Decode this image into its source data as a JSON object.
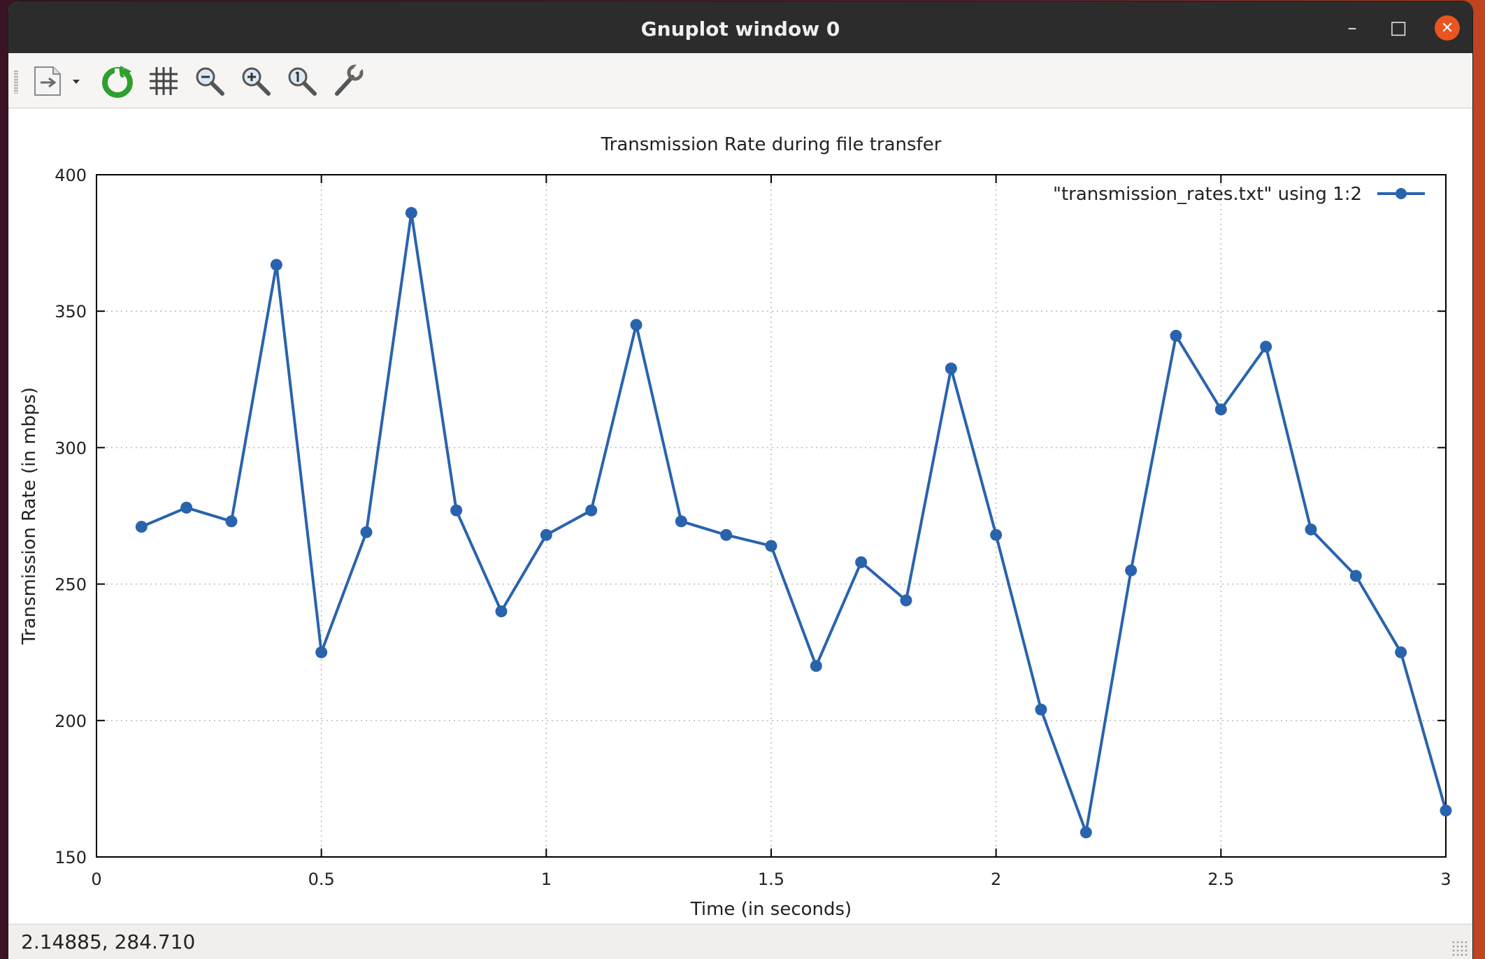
{
  "window": {
    "title": "Gnuplot window 0",
    "minimize_glyph": "–",
    "maximize_glyph": "□",
    "close_glyph": "✕"
  },
  "toolbar": {
    "items": [
      {
        "name": "export-icon",
        "label": "Export"
      },
      {
        "name": "replot-icon",
        "label": "Replot"
      },
      {
        "name": "grid-icon",
        "label": "Show grid"
      },
      {
        "name": "zoom-out-icon",
        "label": "Previous zoom"
      },
      {
        "name": "zoom-in-icon",
        "label": "Next zoom"
      },
      {
        "name": "zoom-reset-icon",
        "label": "Autoscale"
      },
      {
        "name": "settings-icon",
        "label": "Terminal configuration"
      }
    ]
  },
  "status": {
    "coordinates": "2.14885,  284.710"
  },
  "chart_data": {
    "type": "line",
    "title": "Transmission Rate during file transfer",
    "xlabel": "Time (in seconds)",
    "ylabel": "Transmission Rate (in mbps)",
    "xlim": [
      0,
      3
    ],
    "ylim": [
      150,
      400
    ],
    "xticks": [
      0,
      0.5,
      1,
      1.5,
      2,
      2.5,
      3
    ],
    "xtick_labels": [
      "0",
      "0.5",
      "1",
      "1.5",
      "2",
      "2.5",
      "3"
    ],
    "yticks": [
      150,
      200,
      250,
      300,
      350,
      400
    ],
    "ytick_labels": [
      "150",
      "200",
      "250",
      "300",
      "350",
      "400"
    ],
    "grid": true,
    "legend_position": "top-right",
    "color": "#2a63ad",
    "series": [
      {
        "name": "\"transmission_rates.txt\" using 1:2",
        "x": [
          0.1,
          0.2,
          0.3,
          0.4,
          0.5,
          0.6,
          0.7,
          0.8,
          0.9,
          1.0,
          1.1,
          1.2,
          1.3,
          1.4,
          1.5,
          1.6,
          1.7,
          1.8,
          1.9,
          2.0,
          2.1,
          2.2,
          2.3,
          2.4,
          2.5,
          2.6,
          2.7,
          2.8,
          2.9,
          3.0
        ],
        "y": [
          271,
          278,
          273,
          367,
          225,
          269,
          386,
          277,
          240,
          268,
          277,
          345,
          273,
          268,
          264,
          220,
          258,
          244,
          329,
          268,
          204,
          159,
          255,
          341,
          314,
          337,
          270,
          253,
          225,
          167
        ]
      }
    ]
  }
}
